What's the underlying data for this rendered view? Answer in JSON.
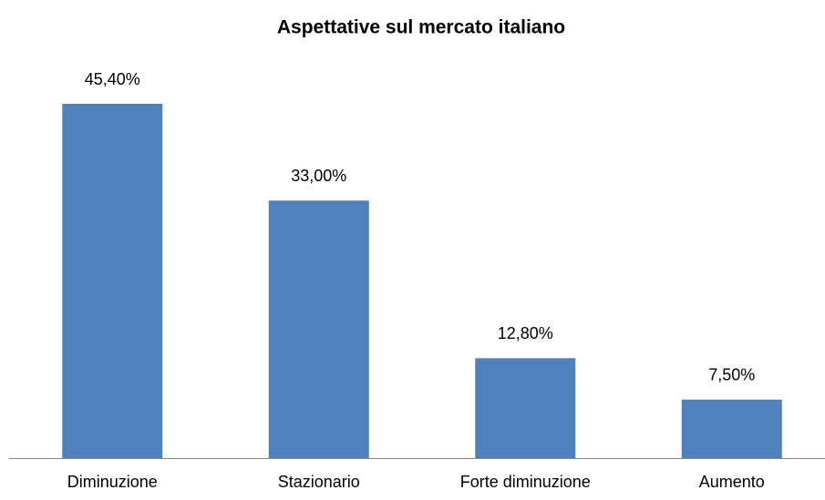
{
  "chart_data": {
    "type": "bar",
    "title": "Aspettative sul mercato italiano",
    "categories": [
      "Diminuzione",
      "Stazionario",
      "Forte diminuzione",
      "Aumento"
    ],
    "values": [
      45.4,
      33.0,
      12.8,
      7.5
    ],
    "value_labels": [
      "45,40%",
      "33,00%",
      "12,80%",
      "7,50%"
    ],
    "color": "#4f81bd"
  }
}
